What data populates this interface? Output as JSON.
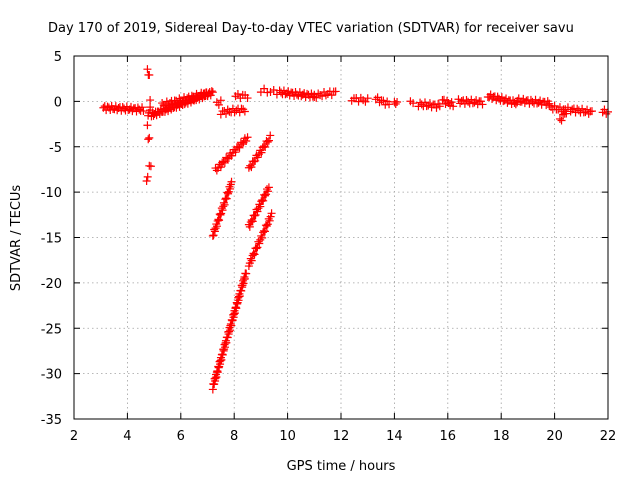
{
  "chart_data": {
    "type": "scatter",
    "title": "Day 170 of 2019, Sidereal Day-to-day VTEC variation (SDTVAR) for receiver savu",
    "xlabel": "GPS time / hours",
    "ylabel": "SDTVAR / TECUs",
    "xlim": [
      2,
      22
    ],
    "ylim": [
      -35,
      5
    ],
    "xticks": [
      "2",
      "4",
      "6",
      "8",
      "10",
      "12",
      "14",
      "16",
      "18",
      "20",
      "22"
    ],
    "yticks": [
      "5",
      "0",
      "-5",
      "-10",
      "-15",
      "-20",
      "-25",
      "-30",
      "-35"
    ],
    "grid": true,
    "marker": "plus",
    "color": "#ff0000",
    "segments": [
      {
        "x0": 3.1,
        "y0": -0.7,
        "x1": 4.6,
        "y1": -0.9,
        "n": 30
      },
      {
        "x0": 4.75,
        "y0": 3.3,
        "x1": 4.82,
        "y1": 2.9,
        "n": 3
      },
      {
        "x0": 4.85,
        "y0": -0.9,
        "x1": 4.85,
        "y1": -0.1,
        "n": 3
      },
      {
        "x0": 4.75,
        "y0": -2.4,
        "x1": 4.8,
        "y1": -1.2,
        "n": 3
      },
      {
        "x0": 4.78,
        "y0": -4.3,
        "x1": 4.82,
        "y1": -4.1,
        "n": 2
      },
      {
        "x0": 4.82,
        "y0": -7.3,
        "x1": 4.88,
        "y1": -6.9,
        "n": 2
      },
      {
        "x0": 4.72,
        "y0": -8.6,
        "x1": 4.76,
        "y1": -8.3,
        "n": 2
      },
      {
        "x0": 4.9,
        "y0": -1.5,
        "x1": 7.2,
        "y1": 1.0,
        "n": 60
      },
      {
        "x0": 5.3,
        "y0": -0.4,
        "x1": 7.0,
        "y1": 0.9,
        "n": 30
      },
      {
        "x0": 7.35,
        "y0": -0.2,
        "x1": 7.5,
        "y1": -0.1,
        "n": 3
      },
      {
        "x0": 7.5,
        "y0": -1.2,
        "x1": 8.4,
        "y1": -0.9,
        "n": 15
      },
      {
        "x0": 8.05,
        "y0": 0.6,
        "x1": 8.5,
        "y1": 0.6,
        "n": 6
      },
      {
        "x0": 7.3,
        "y0": -7.6,
        "x1": 8.5,
        "y1": -4.0,
        "n": 25
      },
      {
        "x0": 7.2,
        "y0": -14.8,
        "x1": 7.9,
        "y1": -9.0,
        "n": 28
      },
      {
        "x0": 7.2,
        "y0": -31.5,
        "x1": 8.45,
        "y1": -18.8,
        "n": 75
      },
      {
        "x0": 8.55,
        "y0": -7.4,
        "x1": 9.35,
        "y1": -4.0,
        "n": 18
      },
      {
        "x0": 8.55,
        "y0": -13.8,
        "x1": 9.3,
        "y1": -9.5,
        "n": 22
      },
      {
        "x0": 8.55,
        "y0": -18.0,
        "x1": 9.4,
        "y1": -12.5,
        "n": 25
      },
      {
        "x0": 9.0,
        "y0": 1.2,
        "x1": 9.6,
        "y1": 1.0,
        "n": 6
      },
      {
        "x0": 9.7,
        "y0": 1.0,
        "x1": 11.0,
        "y1": 0.6,
        "n": 25
      },
      {
        "x0": 11.0,
        "y0": 0.6,
        "x1": 11.8,
        "y1": 1.0,
        "n": 12
      },
      {
        "x0": 12.4,
        "y0": 0.3,
        "x1": 13.0,
        "y1": 0.1,
        "n": 8
      },
      {
        "x0": 13.3,
        "y0": 0.3,
        "x1": 13.8,
        "y1": -0.3,
        "n": 8
      },
      {
        "x0": 14.0,
        "y0": -0.3,
        "x1": 14.1,
        "y1": 0.0,
        "n": 3
      },
      {
        "x0": 14.6,
        "y0": 0.0,
        "x1": 14.7,
        "y1": 0.0,
        "n": 2
      },
      {
        "x0": 14.9,
        "y0": -0.3,
        "x1": 15.7,
        "y1": -0.5,
        "n": 14
      },
      {
        "x0": 15.8,
        "y0": 0.1,
        "x1": 16.2,
        "y1": -0.4,
        "n": 8
      },
      {
        "x0": 16.4,
        "y0": 0.0,
        "x1": 17.3,
        "y1": -0.1,
        "n": 16
      },
      {
        "x0": 17.5,
        "y0": 0.6,
        "x1": 18.6,
        "y1": -0.2,
        "n": 22
      },
      {
        "x0": 18.6,
        "y0": 0.1,
        "x1": 19.8,
        "y1": -0.2,
        "n": 22
      },
      {
        "x0": 19.8,
        "y0": -0.6,
        "x1": 20.4,
        "y1": -1.0,
        "n": 10
      },
      {
        "x0": 20.2,
        "y0": -2.1,
        "x1": 20.5,
        "y1": -0.9,
        "n": 6
      },
      {
        "x0": 20.6,
        "y0": -0.9,
        "x1": 21.4,
        "y1": -1.2,
        "n": 14
      },
      {
        "x0": 21.8,
        "y0": -1.1,
        "x1": 22.0,
        "y1": -1.2,
        "n": 4
      }
    ]
  }
}
